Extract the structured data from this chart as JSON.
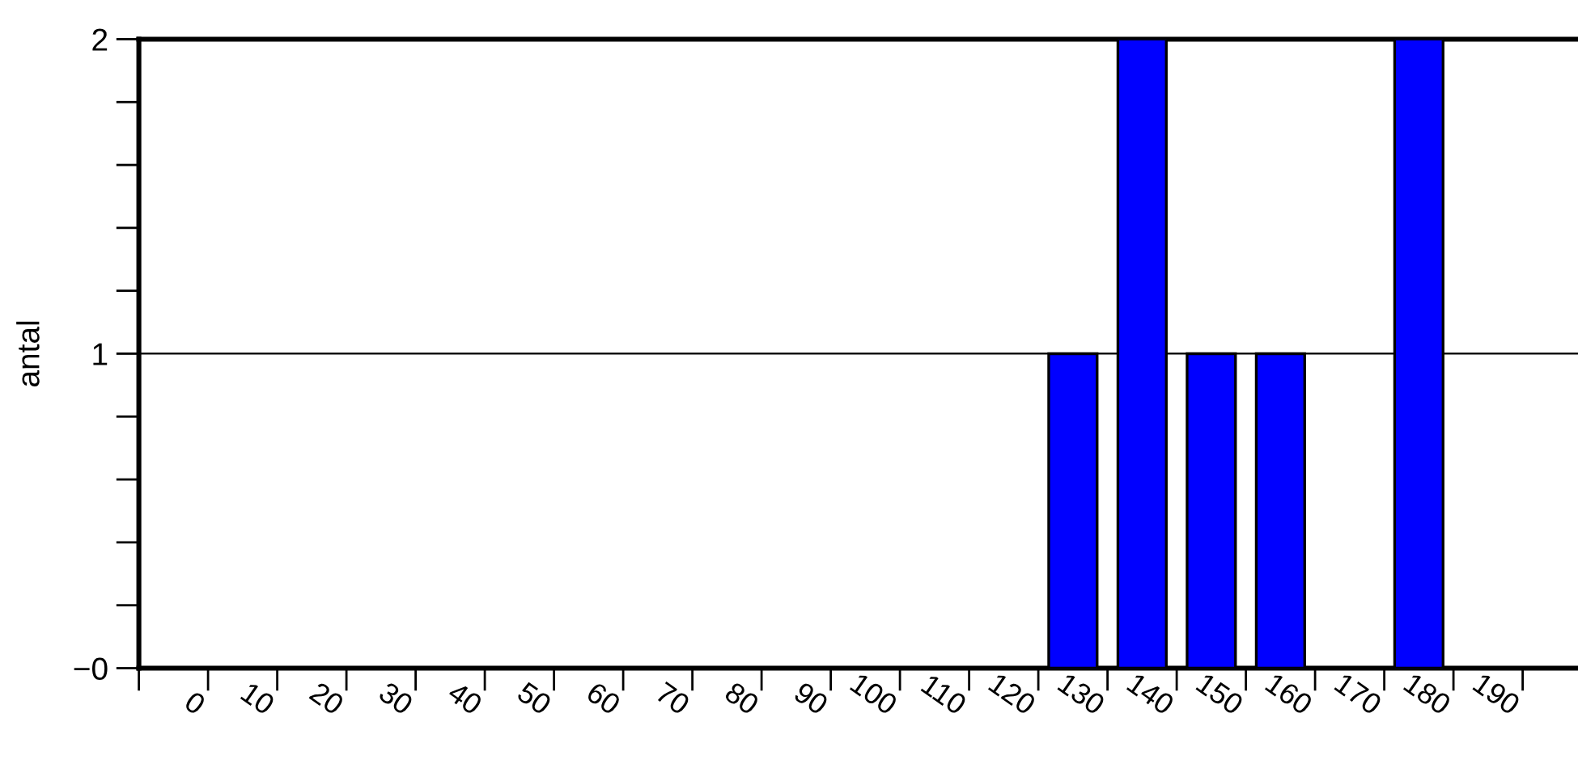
{
  "chart_data": {
    "type": "histogram",
    "ylabel": "antal",
    "bins": [
      120,
      130,
      140,
      150,
      160,
      170,
      180
    ],
    "values": [
      1,
      2,
      1,
      1,
      0,
      2
    ],
    "color": "#0000ff",
    "xlim": [
      -10,
      198
    ],
    "xticks": [
      {
        "value": -10,
        "label": null
      },
      0,
      10,
      20,
      30,
      40,
      50,
      60,
      70,
      80,
      90,
      100,
      110,
      120,
      130,
      140,
      150,
      160,
      170,
      180,
      190
    ],
    "ylim": [
      0,
      2
    ],
    "yticks": [
      {
        "value": 0,
        "label": "−0"
      },
      {
        "value": 0.2,
        "label": null
      },
      {
        "value": 0.4,
        "label": null
      },
      {
        "value": 0.6,
        "label": null
      },
      {
        "value": 0.8,
        "label": null
      },
      1,
      {
        "value": 1.2,
        "label": null
      },
      {
        "value": 1.4,
        "label": null
      },
      {
        "value": 1.6,
        "label": null
      },
      {
        "value": 1.8,
        "label": null
      },
      2
    ],
    "grid": "y"
  }
}
